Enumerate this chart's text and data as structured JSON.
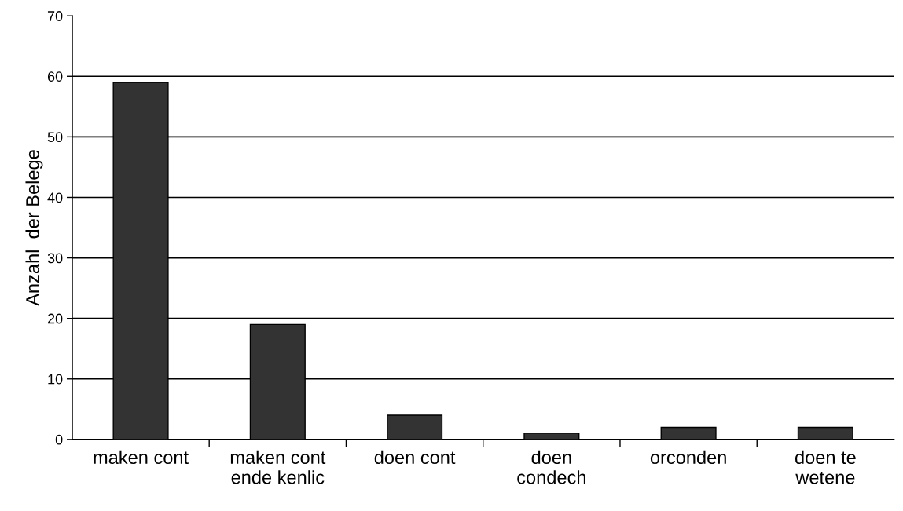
{
  "chart_data": {
    "type": "bar",
    "ylabel": "Anzahl  der Belege",
    "categories": [
      "maken cont",
      "maken cont\nende kenlic",
      "doen cont",
      "doen\ncondech",
      "orconden",
      "doen te\nwetene"
    ],
    "values": [
      59,
      19,
      4,
      1,
      2,
      2
    ],
    "color": "#333333",
    "ylim": [
      0,
      70
    ],
    "yticks": [
      0,
      10,
      20,
      30,
      40,
      50,
      60,
      70
    ],
    "grid": "y"
  }
}
